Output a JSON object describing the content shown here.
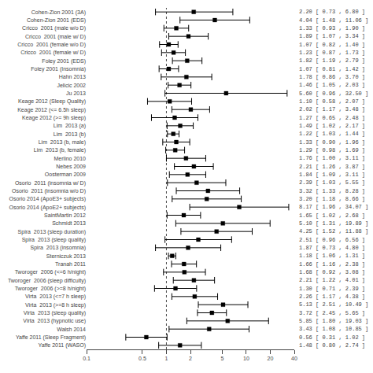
{
  "chart_data": {
    "type": "forest",
    "categories": [
      "Cohen-Zion 2001 (3A)",
      "Cohen-Zion 2001 (EDS)",
      "Cricco  2001 (male w/o D)",
      "Cricco  2001 (male w/ D)",
      "Cricco  2001 (female w/o D)",
      "Cricco  2001 (female w/ D)",
      "Foley 2001 (EDS)",
      "Foley 2001 (Insomnia)",
      "Hahn 2013",
      "Jelicic 2002",
      "Ju 2013",
      "Keage 2012 (Sleep Quality)",
      "Keage 2012 (<= 6.5h sleep)",
      "Keage 2012 (>= 9h sleep)",
      "Lim  2013 (a)",
      "Lim  2013 (b)",
      "Lim  2013 (b, male)",
      "Lim  2013 (b, female)",
      "Merlino 2010",
      "Nebes 2009",
      "Oosterman 2009",
      "Osorio  2011 (insomnia w/ D)",
      "Osorio  2011 (insomnia w/o D)",
      "Osorio 2014 (ApoE3+ subjects)",
      "Osorio 2014 (ApoE2+ subjects)",
      "SaintMartin 2012",
      "Schmidt 2013",
      "Spira  2013 (sleep duration)",
      "Spira  2013 (sleep quality)",
      "Spira  2013 (insomnia)",
      "Sterniczuk 2013",
      "Tranah 2011",
      "Tworoger  2006 (<=6 h/night)",
      "Tworoger  2006 (sleep difficulty)",
      "Tworoger  2006 (>=8 h/night)",
      "Virta  2013 (<=7 h sleep)",
      "Virta  2013 (>=8 h sleep)",
      "Virta  2013 (sleep quality)",
      "Virta  2013 (hypnotic use)",
      "Walsh 2014",
      "Yaffe 2011 (Sleep Fragment)",
      "Yaffe 2011 (WASO)"
    ],
    "values": [
      2.2,
      4.04,
      1.33,
      1.89,
      1.07,
      1.23,
      1.82,
      1.07,
      1.78,
      1.46,
      5.6,
      1.1,
      2.02,
      1.27,
      1.49,
      1.22,
      1.33,
      1.29,
      1.76,
      2.21,
      1.84,
      2.39,
      3.32,
      3.2,
      8.17,
      1.65,
      5.1,
      4.25,
      2.51,
      1.87,
      1.18,
      1.66,
      1.68,
      2.21,
      1.3,
      2.26,
      5.13,
      3.72,
      5.85,
      3.43,
      0.56,
      1.48
    ],
    "lo": [
      0.73,
      1.48,
      0.93,
      1.07,
      0.82,
      0.87,
      1.19,
      0.81,
      0.86,
      1.05,
      0.96,
      0.58,
      1.17,
      0.65,
      1.02,
      1.03,
      0.9,
      0.98,
      1.0,
      1.26,
      1.09,
      1.03,
      1.33,
      1.18,
      1.96,
      1.02,
      1.31,
      1.52,
      0.96,
      0.73,
      1.06,
      1.16,
      0.92,
      1.22,
      0.71,
      1.17,
      2.51,
      2.45,
      1.8,
      1.08,
      0.31,
      0.8
    ],
    "hi": [
      6.8,
      11.06,
      1.9,
      3.34,
      1.4,
      1.73,
      2.79,
      1.42,
      3.7,
      2.03,
      32.5,
      2.07,
      3.48,
      2.48,
      2.17,
      1.44,
      1.96,
      1.69,
      3.11,
      3.87,
      3.11,
      5.55,
      8.28,
      8.66,
      34.07,
      2.68,
      19.89,
      11.88,
      6.56,
      4.8,
      1.31,
      2.38,
      3.08,
      4.01,
      2.39,
      4.38,
      10.49,
      5.65,
      19.03,
      10.85,
      1.02,
      2.74
    ],
    "value_labels": [
      "2.20 [ 0.73 , 6.80 ]",
      "4.04 [ 1.48 , 11.06 ]",
      "1.33 [ 0.93 , 1.90 ]",
      "1.89 [ 1.07 , 3.34 ]",
      "1.07 [ 0.82 , 1.40 ]",
      "1.23 [ 0.87 , 1.73 ]",
      "1.82 [ 1.19 , 2.79 ]",
      "1.07 [ 0.81 , 1.42 ]",
      "1.78 [ 0.86 , 3.70 ]",
      "1.46 [ 1.05 , 2.03 ]",
      "5.60 [ 0.96 , 32.50 ]",
      "1.10 [ 0.58 , 2.07 ]",
      "2.02 [ 1.17 , 3.48 ]",
      "1.27 [ 0.65 , 2.48 ]",
      "1.49 [ 1.02 , 2.17 ]",
      "1.22 [ 1.03 , 1.44 ]",
      "1.33 [ 0.90 , 1.96 ]",
      "1.29 [ 0.98 , 1.69 ]",
      "1.76 [ 1.00 , 3.11 ]",
      "2.21 [ 1.26 , 3.87 ]",
      "1.84 [ 1.09 , 3.11 ]",
      "2.39 [ 1.03 , 5.55 ]",
      "3.32 [ 1.33 , 8.28 ]",
      "3.20 [ 1.18 , 8.66 ]",
      "8.17 [ 1.96 , 34.07 ]",
      "1.65 [ 1.02 , 2.68 ]",
      "5.10 [ 1.31 , 19.89 ]",
      "4.25 [ 1.52 , 11.88 ]",
      "2.51 [ 0.96 , 6.56 ]",
      "1.87 [ 0.73 , 4.80 ]",
      "1.18 [ 1.06 , 1.31 ]",
      "1.66 [ 1.16 , 2.38 ]",
      "1.68 [ 0.92 , 3.08 ]",
      "2.21 [ 1.22 , 4.01 ]",
      "1.30 [ 0.71 , 2.39 ]",
      "2.26 [ 1.17 , 4.38 ]",
      "5.13 [ 2.51 , 10.49 ]",
      "3.72 [ 2.45 , 5.65 ]",
      "5.85 [ 1.80 , 19.03 ]",
      "3.43 [ 1.08 , 10.85 ]",
      "0.56 [ 0.31 , 1.02 ]",
      "1.48 [ 0.80 , 2.74 ]"
    ],
    "reference_line": 1.0,
    "xlim": [
      0.1,
      40.0
    ],
    "xticks": [
      0.1,
      0.5,
      1,
      2,
      5,
      10,
      20,
      40
    ],
    "log": "x",
    "grid": false,
    "color": "#000000",
    "marker": "square"
  }
}
